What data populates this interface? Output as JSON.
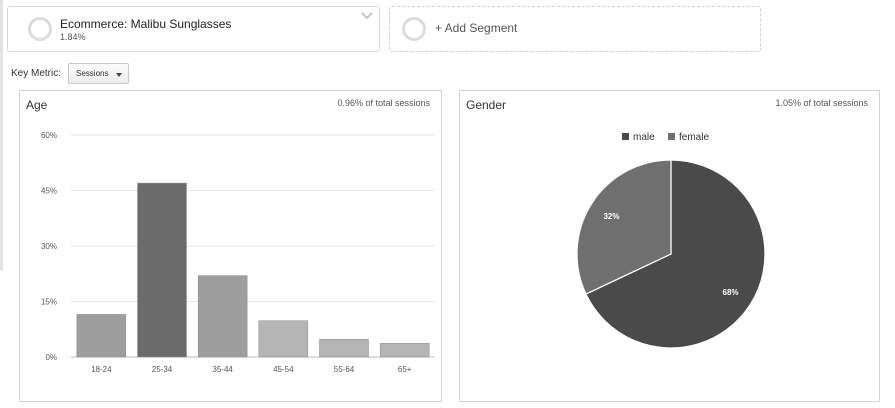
{
  "segments": {
    "active": {
      "name": "Ecommerce: Malibu Sunglasses",
      "value": "1.84%"
    },
    "add_label": "+ Add Segment"
  },
  "key_metric": {
    "label": "Key Metric:",
    "value": "Sessions"
  },
  "age_panel": {
    "title": "Age",
    "stat": "0.96% of total sessions"
  },
  "gender_panel": {
    "title": "Gender",
    "stat": "1.05% of total sessions"
  },
  "colors": {
    "bar_highlight": "#6b6b6b",
    "bar_default": "#9e9e9e",
    "bar_light": "#b5b5b5",
    "pie_male": "#4a4a4a",
    "pie_female": "#6f6f6f"
  },
  "chart_data": [
    {
      "type": "bar",
      "title": "Age",
      "categories": [
        "18-24",
        "25-34",
        "35-44",
        "45-54",
        "55-64",
        "65+"
      ],
      "values": [
        11.5,
        47,
        22,
        9.8,
        4.8,
        3.7
      ],
      "highlight": "25-34",
      "yticks": [
        "0%",
        "15%",
        "30%",
        "45%",
        "60%"
      ],
      "ylim": [
        0,
        60
      ],
      "grid": true
    },
    {
      "type": "pie",
      "title": "Gender",
      "legend": [
        "male",
        "female"
      ],
      "legend_position": "top",
      "slices": [
        {
          "name": "male",
          "value": 68,
          "label": "68%"
        },
        {
          "name": "female",
          "value": 32,
          "label": "32%"
        }
      ]
    }
  ]
}
